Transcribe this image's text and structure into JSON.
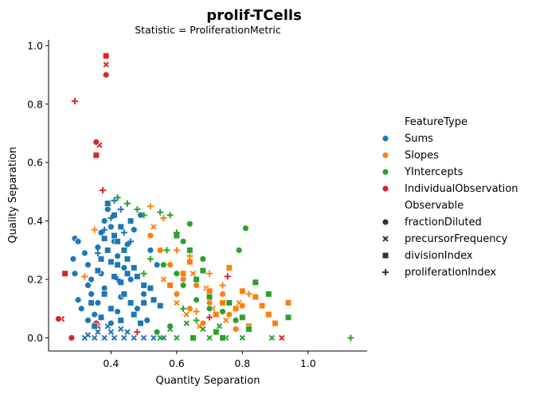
{
  "chart_data": {
    "type": "scatter",
    "title": "prolif-TCells",
    "subtitle": "Statistic = ProliferationMetric",
    "xlabel": "Quantity Separation",
    "ylabel": "Quality Separation",
    "xlim": [
      0.21,
      1.18
    ],
    "ylim": [
      -0.045,
      1.02
    ],
    "xticks": [
      0.4,
      0.6,
      0.8,
      1.0
    ],
    "xtick_labels": [
      "0.4",
      "0.6",
      "0.8",
      "1.0"
    ],
    "yticks": [
      0.0,
      0.2,
      0.4,
      0.6,
      0.8,
      1.0
    ],
    "ytick_labels": [
      "0.0",
      "0.2",
      "0.4",
      "0.6",
      "0.8",
      "1.0"
    ],
    "grid": false,
    "legend_position": "right",
    "legend": {
      "hue_title": "FeatureType",
      "hue_entries": [
        {
          "name": "Sums",
          "color": "#1f77b4"
        },
        {
          "name": "Slopes",
          "color": "#ff7f0e"
        },
        {
          "name": "YIntercepts",
          "color": "#2ca02c"
        },
        {
          "name": "IndividualObservation",
          "color": "#d62728"
        }
      ],
      "style_title": "Observable",
      "style_entries": [
        {
          "name": "fractionDiluted",
          "marker": "circle"
        },
        {
          "name": "precursorFrequency",
          "marker": "x"
        },
        {
          "name": "divisionIndex",
          "marker": "square"
        },
        {
          "name": "proliferationIndex",
          "marker": "plus"
        }
      ]
    },
    "series": [
      {
        "hue": "IndividualObservation",
        "style": "divisionIndex",
        "points": [
          [
            0.385,
            0.965
          ],
          [
            0.355,
            0.625
          ],
          [
            0.26,
            0.22
          ]
        ]
      },
      {
        "hue": "IndividualObservation",
        "style": "precursorFrequency",
        "points": [
          [
            0.385,
            0.935
          ],
          [
            0.365,
            0.66
          ],
          [
            0.25,
            0.065
          ],
          [
            0.36,
            0.04
          ],
          [
            0.92,
            0.0
          ]
        ]
      },
      {
        "hue": "IndividualObservation",
        "style": "fractionDiluted",
        "points": [
          [
            0.385,
            0.9
          ],
          [
            0.355,
            0.67
          ],
          [
            0.24,
            0.065
          ],
          [
            0.355,
            0.05
          ],
          [
            0.28,
            0.0
          ]
        ]
      },
      {
        "hue": "IndividualObservation",
        "style": "proliferationIndex",
        "points": [
          [
            0.29,
            0.81
          ],
          [
            0.375,
            0.505
          ],
          [
            0.755,
            0.21
          ],
          [
            0.7,
            0.07
          ],
          [
            0.48,
            0.02
          ]
        ]
      },
      {
        "hue": "Sums",
        "style": "fractionDiluted",
        "points": [
          [
            0.285,
            0.27
          ],
          [
            0.29,
            0.22
          ],
          [
            0.29,
            0.34
          ],
          [
            0.3,
            0.33
          ],
          [
            0.32,
            0.29
          ],
          [
            0.33,
            0.25
          ],
          [
            0.34,
            0.2
          ],
          [
            0.36,
            0.31
          ],
          [
            0.37,
            0.36
          ],
          [
            0.38,
            0.4
          ],
          [
            0.39,
            0.44
          ],
          [
            0.4,
            0.38
          ],
          [
            0.41,
            0.33
          ],
          [
            0.42,
            0.28
          ],
          [
            0.44,
            0.24
          ],
          [
            0.46,
            0.2
          ],
          [
            0.34,
            0.15
          ],
          [
            0.31,
            0.1
          ],
          [
            0.33,
            0.06
          ],
          [
            0.36,
            0.12
          ],
          [
            0.38,
            0.17
          ],
          [
            0.43,
            0.14
          ],
          [
            0.48,
            0.1
          ],
          [
            0.5,
            0.15
          ],
          [
            0.3,
            0.13
          ],
          [
            0.35,
            0.08
          ],
          [
            0.45,
            0.32
          ],
          [
            0.47,
            0.37
          ],
          [
            0.52,
            0.3
          ],
          [
            0.54,
            0.25
          ],
          [
            0.4,
            0.05
          ],
          [
            0.42,
            0.09
          ],
          [
            0.37,
            0.22
          ],
          [
            0.33,
            0.18
          ],
          [
            0.49,
            0.42
          ],
          [
            0.51,
            0.06
          ]
        ]
      },
      {
        "hue": "Sums",
        "style": "precursorFrequency",
        "points": [
          [
            0.32,
            0.0
          ],
          [
            0.35,
            0.0
          ],
          [
            0.38,
            0.0
          ],
          [
            0.41,
            0.0
          ],
          [
            0.44,
            0.0
          ],
          [
            0.47,
            0.0
          ],
          [
            0.5,
            0.0
          ],
          [
            0.53,
            0.0
          ],
          [
            0.56,
            0.0
          ],
          [
            0.36,
            0.02
          ],
          [
            0.4,
            0.02
          ],
          [
            0.45,
            0.02
          ],
          [
            0.33,
            0.01
          ],
          [
            0.39,
            0.04
          ],
          [
            0.43,
            0.03
          ]
        ]
      },
      {
        "hue": "Sums",
        "style": "divisionIndex",
        "points": [
          [
            0.39,
            0.46
          ],
          [
            0.41,
            0.42
          ],
          [
            0.43,
            0.38
          ],
          [
            0.38,
            0.34
          ],
          [
            0.42,
            0.33
          ],
          [
            0.44,
            0.3
          ],
          [
            0.37,
            0.27
          ],
          [
            0.4,
            0.26
          ],
          [
            0.45,
            0.27
          ],
          [
            0.47,
            0.24
          ],
          [
            0.36,
            0.23
          ],
          [
            0.41,
            0.21
          ],
          [
            0.43,
            0.19
          ],
          [
            0.48,
            0.21
          ],
          [
            0.5,
            0.18
          ],
          [
            0.52,
            0.17
          ],
          [
            0.38,
            0.15
          ],
          [
            0.44,
            0.15
          ],
          [
            0.46,
            0.12
          ],
          [
            0.5,
            0.12
          ],
          [
            0.53,
            0.13
          ],
          [
            0.55,
            0.11
          ],
          [
            0.34,
            0.12
          ],
          [
            0.4,
            0.1
          ],
          [
            0.43,
            0.06
          ],
          [
            0.47,
            0.08
          ],
          [
            0.49,
            0.05
          ],
          [
            0.35,
            0.04
          ],
          [
            0.37,
            0.07
          ],
          [
            0.41,
            0.35
          ],
          [
            0.46,
            0.4
          ],
          [
            0.39,
            0.3
          ],
          [
            0.42,
            0.25
          ],
          [
            0.45,
            0.22
          ]
        ]
      },
      {
        "hue": "Sums",
        "style": "proliferationIndex",
        "points": [
          [
            0.41,
            0.47
          ],
          [
            0.43,
            0.44
          ],
          [
            0.4,
            0.41
          ],
          [
            0.44,
            0.36
          ],
          [
            0.38,
            0.37
          ],
          [
            0.46,
            0.33
          ],
          [
            0.36,
            0.29
          ],
          [
            0.42,
            0.2
          ]
        ]
      },
      {
        "hue": "Slopes",
        "style": "fractionDiluted",
        "points": [
          [
            0.6,
            0.15
          ],
          [
            0.64,
            0.1
          ],
          [
            0.68,
            0.05
          ],
          [
            0.72,
            0.02
          ],
          [
            0.76,
            0.08
          ],
          [
            0.7,
            0.12
          ],
          [
            0.62,
            0.2
          ],
          [
            0.66,
            0.18
          ],
          [
            0.74,
            0.15
          ],
          [
            0.8,
            0.11
          ],
          [
            0.58,
            0.25
          ],
          [
            0.55,
            0.3
          ],
          [
            0.52,
            0.35
          ],
          [
            0.78,
            0.03
          ]
        ]
      },
      {
        "hue": "Slopes",
        "style": "precursorFrequency",
        "points": [
          [
            0.6,
            0.12
          ],
          [
            0.63,
            0.08
          ],
          [
            0.67,
            0.04
          ],
          [
            0.71,
            0.1
          ],
          [
            0.75,
            0.06
          ],
          [
            0.79,
            0.12
          ],
          [
            0.56,
            0.2
          ],
          [
            0.53,
            0.38
          ],
          [
            0.65,
            0.22
          ],
          [
            0.69,
            0.17
          ]
        ]
      },
      {
        "hue": "Slopes",
        "style": "divisionIndex",
        "points": [
          [
            0.62,
            0.22
          ],
          [
            0.66,
            0.2
          ],
          [
            0.7,
            0.16
          ],
          [
            0.74,
            0.12
          ],
          [
            0.76,
            0.24
          ],
          [
            0.8,
            0.16
          ],
          [
            0.84,
            0.14
          ],
          [
            0.86,
            0.11
          ],
          [
            0.88,
            0.08
          ],
          [
            0.94,
            0.12
          ],
          [
            0.9,
            0.05
          ],
          [
            0.68,
            0.27
          ],
          [
            0.72,
            0.08
          ],
          [
            0.78,
            0.1
          ],
          [
            0.82,
            0.04
          ],
          [
            0.58,
            0.18
          ],
          [
            0.64,
            0.26
          ],
          [
            0.84,
            0.19
          ]
        ]
      },
      {
        "hue": "Slopes",
        "style": "proliferationIndex",
        "points": [
          [
            0.52,
            0.45
          ],
          [
            0.56,
            0.41
          ],
          [
            0.6,
            0.3
          ],
          [
            0.64,
            0.28
          ],
          [
            0.35,
            0.37
          ],
          [
            0.32,
            0.21
          ],
          [
            0.7,
            0.22
          ],
          [
            0.74,
            0.18
          ],
          [
            0.82,
            0.15
          ],
          [
            0.66,
            0.09
          ]
        ]
      },
      {
        "hue": "YIntercepts",
        "style": "fractionDiluted",
        "points": [
          [
            0.64,
            0.39
          ],
          [
            0.81,
            0.375
          ],
          [
            0.79,
            0.3
          ],
          [
            0.56,
            0.25
          ],
          [
            0.6,
            0.22
          ],
          [
            0.62,
            0.18
          ],
          [
            0.66,
            0.13
          ],
          [
            0.7,
            0.1
          ],
          [
            0.74,
            0.09
          ],
          [
            0.78,
            0.06
          ],
          [
            0.58,
            0.04
          ],
          [
            0.54,
            0.02
          ],
          [
            0.62,
            0.33
          ],
          [
            0.68,
            0.27
          ]
        ]
      },
      {
        "hue": "YIntercepts",
        "style": "precursorFrequency",
        "points": [
          [
            0.55,
            0.0
          ],
          [
            0.6,
            0.0
          ],
          [
            0.65,
            0.0
          ],
          [
            0.7,
            0.0
          ],
          [
            0.75,
            0.0
          ],
          [
            0.8,
            0.0
          ],
          [
            0.89,
            0.0
          ],
          [
            0.58,
            0.03
          ],
          [
            0.63,
            0.05
          ],
          [
            0.68,
            0.03
          ],
          [
            0.73,
            0.04
          ]
        ]
      },
      {
        "hue": "YIntercepts",
        "style": "divisionIndex",
        "points": [
          [
            0.6,
            0.35
          ],
          [
            0.64,
            0.3
          ],
          [
            0.66,
            0.2
          ],
          [
            0.7,
            0.14
          ],
          [
            0.76,
            0.12
          ],
          [
            0.8,
            0.07
          ],
          [
            0.84,
            0.19
          ],
          [
            0.88,
            0.15
          ],
          [
            0.94,
            0.07
          ],
          [
            0.82,
            0.03
          ],
          [
            0.72,
            0.02
          ],
          [
            0.65,
            0.0
          ],
          [
            0.74,
            0.0
          ],
          [
            0.68,
            0.23
          ]
        ]
      },
      {
        "hue": "YIntercepts",
        "style": "proliferationIndex",
        "points": [
          [
            0.42,
            0.48
          ],
          [
            0.45,
            0.46
          ],
          [
            0.48,
            0.44
          ],
          [
            0.5,
            0.42
          ],
          [
            0.55,
            0.43
          ],
          [
            0.58,
            0.42
          ],
          [
            0.6,
            0.36
          ],
          [
            0.57,
            0.3
          ],
          [
            0.52,
            0.27
          ],
          [
            0.5,
            0.22
          ],
          [
            1.13,
            0.0
          ],
          [
            0.62,
            0.1
          ],
          [
            0.66,
            0.06
          ]
        ]
      }
    ]
  }
}
